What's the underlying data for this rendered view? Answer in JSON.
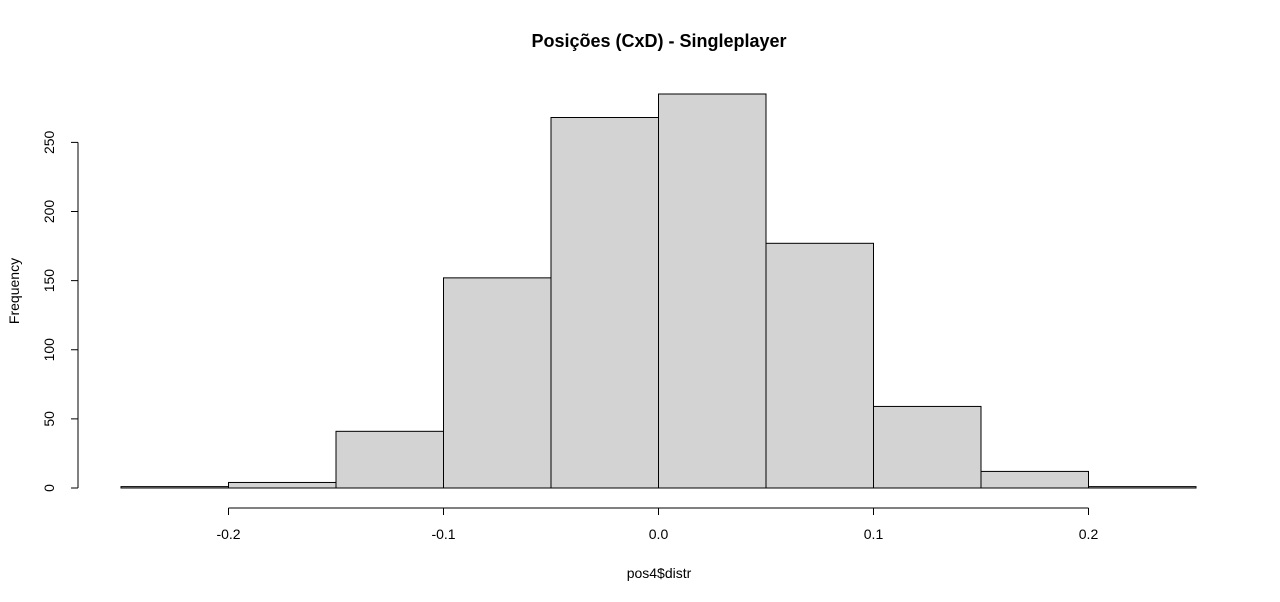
{
  "chart_data": {
    "type": "bar",
    "title": "Posições (CxD) - Singleplayer",
    "xlabel": "pos4$distr",
    "ylabel": "Frequency",
    "bins": [
      {
        "start": -0.25,
        "end": -0.2,
        "value": 1
      },
      {
        "start": -0.2,
        "end": -0.15,
        "value": 4
      },
      {
        "start": -0.15,
        "end": -0.1,
        "value": 41
      },
      {
        "start": -0.1,
        "end": -0.05,
        "value": 152
      },
      {
        "start": -0.05,
        "end": 0.0,
        "value": 268
      },
      {
        "start": 0.0,
        "end": 0.05,
        "value": 285
      },
      {
        "start": 0.05,
        "end": 0.1,
        "value": 177
      },
      {
        "start": 0.1,
        "end": 0.15,
        "value": 59
      },
      {
        "start": 0.15,
        "end": 0.2,
        "value": 12
      },
      {
        "start": 0.2,
        "end": 0.25,
        "value": 1
      }
    ],
    "xlim": [
      -0.25,
      0.25
    ],
    "ylim": [
      0,
      285
    ],
    "x_ticks": [
      -0.2,
      -0.1,
      0.0,
      0.1,
      0.2
    ],
    "x_tick_labels": [
      "-0.2",
      "-0.1",
      "0.0",
      "0.1",
      "0.2"
    ],
    "y_ticks": [
      0,
      50,
      100,
      150,
      200,
      250
    ],
    "y_tick_labels": [
      "0",
      "50",
      "100",
      "150",
      "200",
      "250"
    ],
    "grid": false,
    "bar_fill": "#d3d3d3",
    "bar_stroke": "#000000"
  }
}
